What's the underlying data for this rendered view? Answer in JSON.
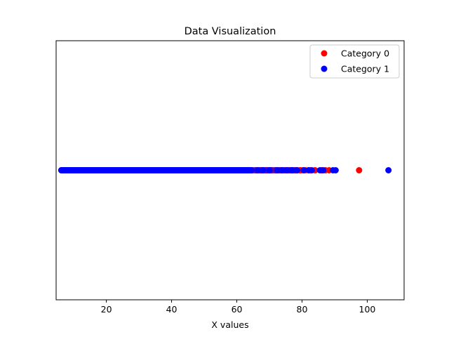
{
  "chart_data": {
    "type": "scatter",
    "title": "Data Visualization",
    "xlabel": "X values",
    "ylabel": "",
    "xlim": [
      4.6,
      111.3
    ],
    "ylim": [
      -0.055,
      0.055
    ],
    "x_ticks": [
      20,
      40,
      60,
      80,
      100
    ],
    "y_ticks": [],
    "grid": false,
    "legend_position": "top-right",
    "series": [
      {
        "name": "Category 0",
        "color": "#ff0000",
        "ranges": [
          [
            9,
            64,
            1.0
          ],
          [
            64,
            80,
            0.5
          ]
        ],
        "points": [
          {
            "x": 66,
            "y": 0
          },
          {
            "x": 67.5,
            "y": 0
          },
          {
            "x": 69,
            "y": 0
          },
          {
            "x": 70.5,
            "y": 0
          },
          {
            "x": 72,
            "y": 0
          },
          {
            "x": 73.5,
            "y": 0
          },
          {
            "x": 75,
            "y": 0
          },
          {
            "x": 76.5,
            "y": 0
          },
          {
            "x": 78,
            "y": 0
          },
          {
            "x": 79.5,
            "y": 0
          },
          {
            "x": 81,
            "y": 0
          },
          {
            "x": 82.5,
            "y": 0
          },
          {
            "x": 84,
            "y": 0
          },
          {
            "x": 86,
            "y": 0
          },
          {
            "x": 87.2,
            "y": 0
          },
          {
            "x": 88.3,
            "y": 0
          },
          {
            "x": 97.5,
            "y": 0
          }
        ]
      },
      {
        "name": "Category 1",
        "color": "#0000ff",
        "ranges": [
          [
            6.2,
            64,
            1.0
          ],
          [
            64,
            78,
            0.6
          ]
        ],
        "points": [
          {
            "x": 6.2,
            "y": 0
          },
          {
            "x": 7.5,
            "y": 0
          },
          {
            "x": 64.5,
            "y": 0
          },
          {
            "x": 66.5,
            "y": 0
          },
          {
            "x": 68,
            "y": 0
          },
          {
            "x": 70,
            "y": 0
          },
          {
            "x": 72.5,
            "y": 0
          },
          {
            "x": 74,
            "y": 0
          },
          {
            "x": 75.5,
            "y": 0
          },
          {
            "x": 77,
            "y": 0
          },
          {
            "x": 78.5,
            "y": 0
          },
          {
            "x": 80.5,
            "y": 0
          },
          {
            "x": 82,
            "y": 0
          },
          {
            "x": 83,
            "y": 0
          },
          {
            "x": 85.5,
            "y": 0
          },
          {
            "x": 86.5,
            "y": 0
          },
          {
            "x": 89.5,
            "y": 0
          },
          {
            "x": 90.3,
            "y": 0
          },
          {
            "x": 106.5,
            "y": 0
          }
        ]
      }
    ]
  }
}
